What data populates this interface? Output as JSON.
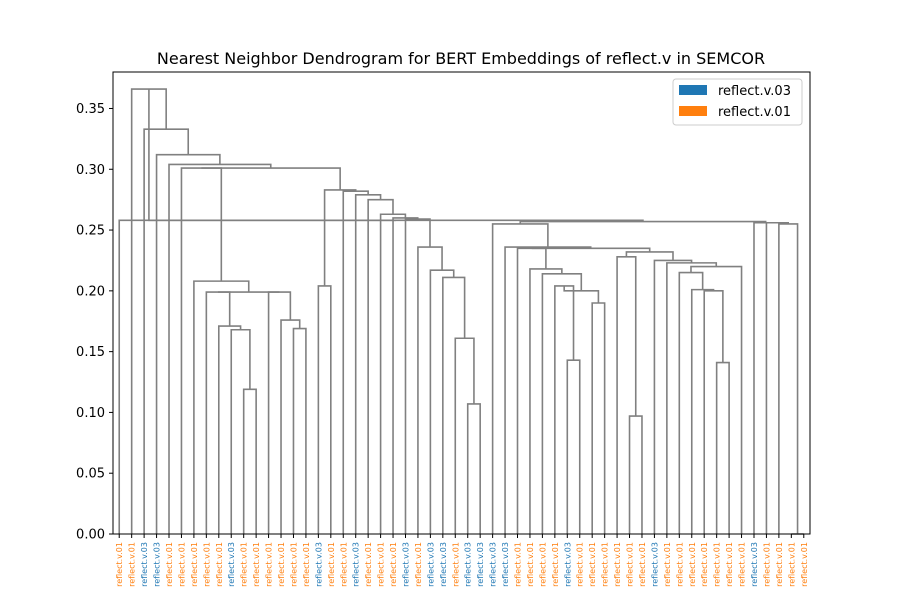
{
  "chart_data": {
    "type": "dendrogram",
    "title": "Nearest Neighbor Dendrogram for BERT Embeddings of reflect.v in SEMCOR",
    "xlabel": "",
    "ylabel": "",
    "ylim": [
      0,
      0.38
    ],
    "yticks": [
      "0.00",
      "0.05",
      "0.10",
      "0.15",
      "0.20",
      "0.25",
      "0.30",
      "0.35"
    ],
    "legend": {
      "position": "top-right",
      "entries": [
        {
          "label": "reflect.v.03",
          "color": "#1f77b4"
        },
        {
          "label": "reflect.v.01",
          "color": "#ff7f0e"
        }
      ]
    },
    "colors": {
      "reflect.v.03": "#1f77b4",
      "reflect.v.01": "#ff7f0e",
      "link": "#808080"
    },
    "leaves": [
      "reflect.v.01",
      "reflect.v.01",
      "reflect.v.03",
      "reflect.v.03",
      "reflect.v.01",
      "reflect.v.01",
      "reflect.v.01",
      "reflect.v.01",
      "reflect.v.01",
      "reflect.v.03",
      "reflect.v.01",
      "reflect.v.01",
      "reflect.v.01",
      "reflect.v.01",
      "reflect.v.01",
      "reflect.v.01",
      "reflect.v.03",
      "reflect.v.01",
      "reflect.v.01",
      "reflect.v.03",
      "reflect.v.01",
      "reflect.v.01",
      "reflect.v.01",
      "reflect.v.03",
      "reflect.v.01",
      "reflect.v.03",
      "reflect.v.03",
      "reflect.v.01",
      "reflect.v.03",
      "reflect.v.03",
      "reflect.v.03",
      "reflect.v.03",
      "reflect.v.01",
      "reflect.v.01",
      "reflect.v.01",
      "reflect.v.01",
      "reflect.v.03",
      "reflect.v.01",
      "reflect.v.01",
      "reflect.v.01",
      "reflect.v.01",
      "reflect.v.01",
      "reflect.v.01",
      "reflect.v.03",
      "reflect.v.01",
      "reflect.v.01",
      "reflect.v.01",
      "reflect.v.01",
      "reflect.v.01",
      "reflect.v.01",
      "reflect.v.01",
      "reflect.v.03",
      "reflect.v.01",
      "reflect.v.01",
      "reflect.v.01",
      "reflect.v.01"
    ],
    "links": [
      {
        "a": 54,
        "b": 55,
        "h": 0.0,
        "id": "n0"
      },
      {
        "a": 10,
        "b": 11,
        "h": 0.119,
        "id": "n1"
      },
      {
        "a": 14,
        "b": 15,
        "h": 0.169,
        "id": "n2"
      },
      {
        "a": 13,
        "b": "n2",
        "h": 0.176,
        "id": "n3"
      },
      {
        "a": 12,
        "b": "n3",
        "h": 0.199,
        "id": "n4"
      },
      {
        "a": 9,
        "b": "n1",
        "h": 0.168,
        "id": "n5"
      },
      {
        "a": 8,
        "b": "n5",
        "h": 0.171,
        "id": "n6"
      },
      {
        "a": 7,
        "b": "n6",
        "h": 0.199,
        "id": "n7"
      },
      {
        "a": "n7",
        "b": "n4",
        "h": 0.199,
        "id": "n8"
      },
      {
        "a": 6,
        "b": "n8",
        "h": 0.208,
        "id": "n9"
      },
      {
        "a": 5,
        "b": "n9",
        "h": 0.301,
        "id": "n10"
      },
      {
        "a": 16,
        "b": 17,
        "h": 0.204,
        "id": "n11"
      },
      {
        "a": 28,
        "b": 29,
        "h": 0.107,
        "id": "n12"
      },
      {
        "a": 27,
        "b": "n12",
        "h": 0.161,
        "id": "n13"
      },
      {
        "a": 26,
        "b": "n13",
        "h": 0.211,
        "id": "n14"
      },
      {
        "a": 25,
        "b": "n14",
        "h": 0.217,
        "id": "n15"
      },
      {
        "a": 24,
        "b": "n15",
        "h": 0.236,
        "id": "n16"
      },
      {
        "a": 23,
        "b": "n16",
        "h": 0.259,
        "id": "n17"
      },
      {
        "a": 22,
        "b": "n17",
        "h": 0.26,
        "id": "n18"
      },
      {
        "a": 21,
        "b": "n18",
        "h": 0.263,
        "id": "n19"
      },
      {
        "a": 20,
        "b": "n19",
        "h": 0.275,
        "id": "n20"
      },
      {
        "a": 19,
        "b": "n20",
        "h": 0.279,
        "id": "n21"
      },
      {
        "a": 18,
        "b": "n21",
        "h": 0.282,
        "id": "n22"
      },
      {
        "a": "n11",
        "b": "n22",
        "h": 0.283,
        "id": "n23"
      },
      {
        "a": "n10",
        "b": "n23",
        "h": 0.301,
        "id": "n24"
      },
      {
        "a": 4,
        "b": "n24",
        "h": 0.304,
        "id": "n25"
      },
      {
        "a": 3,
        "b": "n25",
        "h": 0.312,
        "id": "n26"
      },
      {
        "a": 2,
        "b": "n26",
        "h": 0.333,
        "id": "n27"
      },
      {
        "a": 1,
        "b": "n27",
        "h": 0.366,
        "id": "n28"
      },
      {
        "a": 36,
        "b": 37,
        "h": 0.143,
        "id": "n29"
      },
      {
        "a": 35,
        "b": "n29",
        "h": 0.204,
        "id": "n30"
      },
      {
        "a": 38,
        "b": 39,
        "h": 0.19,
        "id": "n31"
      },
      {
        "a": "n30",
        "b": "n31",
        "h": 0.2,
        "id": "n32"
      },
      {
        "a": 34,
        "b": "n32",
        "h": 0.214,
        "id": "n33"
      },
      {
        "a": 33,
        "b": "n33",
        "h": 0.218,
        "id": "n34"
      },
      {
        "a": 32,
        "b": "n34",
        "h": 0.235,
        "id": "n35"
      },
      {
        "a": 41,
        "b": 42,
        "h": 0.097,
        "id": "n36"
      },
      {
        "a": 40,
        "b": "n36",
        "h": 0.228,
        "id": "n37"
      },
      {
        "a": 48,
        "b": 49,
        "h": 0.141,
        "id": "n38"
      },
      {
        "a": 47,
        "b": "n38",
        "h": 0.2,
        "id": "n39"
      },
      {
        "a": 46,
        "b": "n39",
        "h": 0.201,
        "id": "n40"
      },
      {
        "a": 45,
        "b": "n40",
        "h": 0.215,
        "id": "n41"
      },
      {
        "a": "n41",
        "b": 50,
        "h": 0.22,
        "id": "n42"
      },
      {
        "a": 44,
        "b": "n42",
        "h": 0.223,
        "id": "n43"
      },
      {
        "a": 43,
        "b": "n43",
        "h": 0.225,
        "id": "n44"
      },
      {
        "a": "n37",
        "b": "n44",
        "h": 0.232,
        "id": "n45"
      },
      {
        "a": "n35",
        "b": "n45",
        "h": 0.235,
        "id": "n46"
      },
      {
        "a": 31,
        "b": "n46",
        "h": 0.236,
        "id": "n47"
      },
      {
        "a": 30,
        "b": "n47",
        "h": 0.255,
        "id": "n48"
      },
      {
        "a": 53,
        "b": "n0",
        "h": 0.255,
        "id": "n49"
      },
      {
        "a": 52,
        "b": "n49",
        "h": 0.256,
        "id": "n50"
      },
      {
        "a": 51,
        "b": "n50",
        "h": 0.256,
        "id": "n51"
      },
      {
        "a": "n48",
        "b": "n51",
        "h": 0.257,
        "id": "n52"
      },
      {
        "a": "n28",
        "b": "n52",
        "h": 0.258,
        "id": "n53"
      },
      {
        "a": 0,
        "b": "n53",
        "h": 0.258,
        "id": "n54"
      }
    ]
  }
}
